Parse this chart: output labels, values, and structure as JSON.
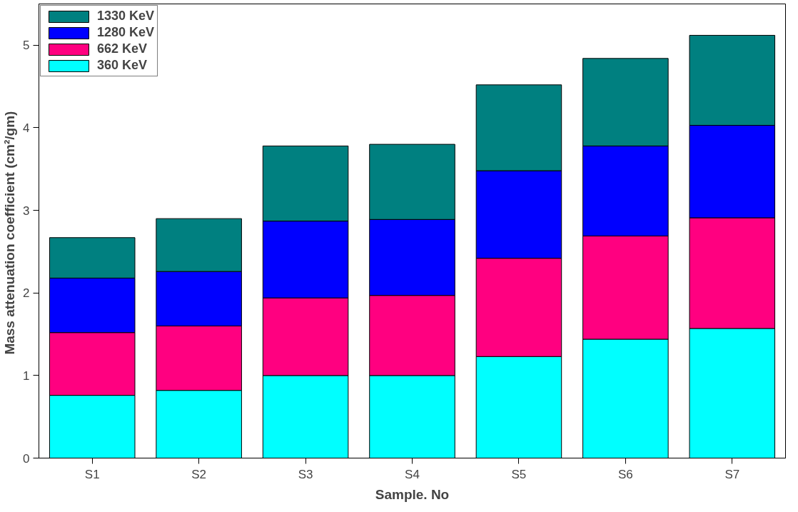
{
  "chart_data": {
    "type": "bar",
    "stacked": true,
    "xlabel": "Sample. No",
    "ylabel": "Mass attenuation coefficient  (cm²/gm)",
    "categories": [
      "S1",
      "S2",
      "S3",
      "S4",
      "S5",
      "S6",
      "S7"
    ],
    "series": [
      {
        "name": "360 KeV",
        "color": "#00ffff",
        "values": [
          0.76,
          0.82,
          1.0,
          1.0,
          1.23,
          1.44,
          1.57
        ]
      },
      {
        "name": "662 KeV",
        "color": "#ff0080",
        "values": [
          0.76,
          0.78,
          0.94,
          0.97,
          1.19,
          1.25,
          1.34
        ]
      },
      {
        "name": "1280 KeV",
        "color": "#0000ff",
        "values": [
          0.66,
          0.66,
          0.93,
          0.92,
          1.06,
          1.09,
          1.12
        ]
      },
      {
        "name": "1330 KeV",
        "color": "#008080",
        "values": [
          0.49,
          0.64,
          0.91,
          0.91,
          1.04,
          1.06,
          1.09
        ]
      }
    ],
    "ylim": [
      0,
      5.5
    ],
    "yticks": [
      0,
      1,
      2,
      3,
      4,
      5
    ],
    "grid": false,
    "legend": "top left"
  }
}
